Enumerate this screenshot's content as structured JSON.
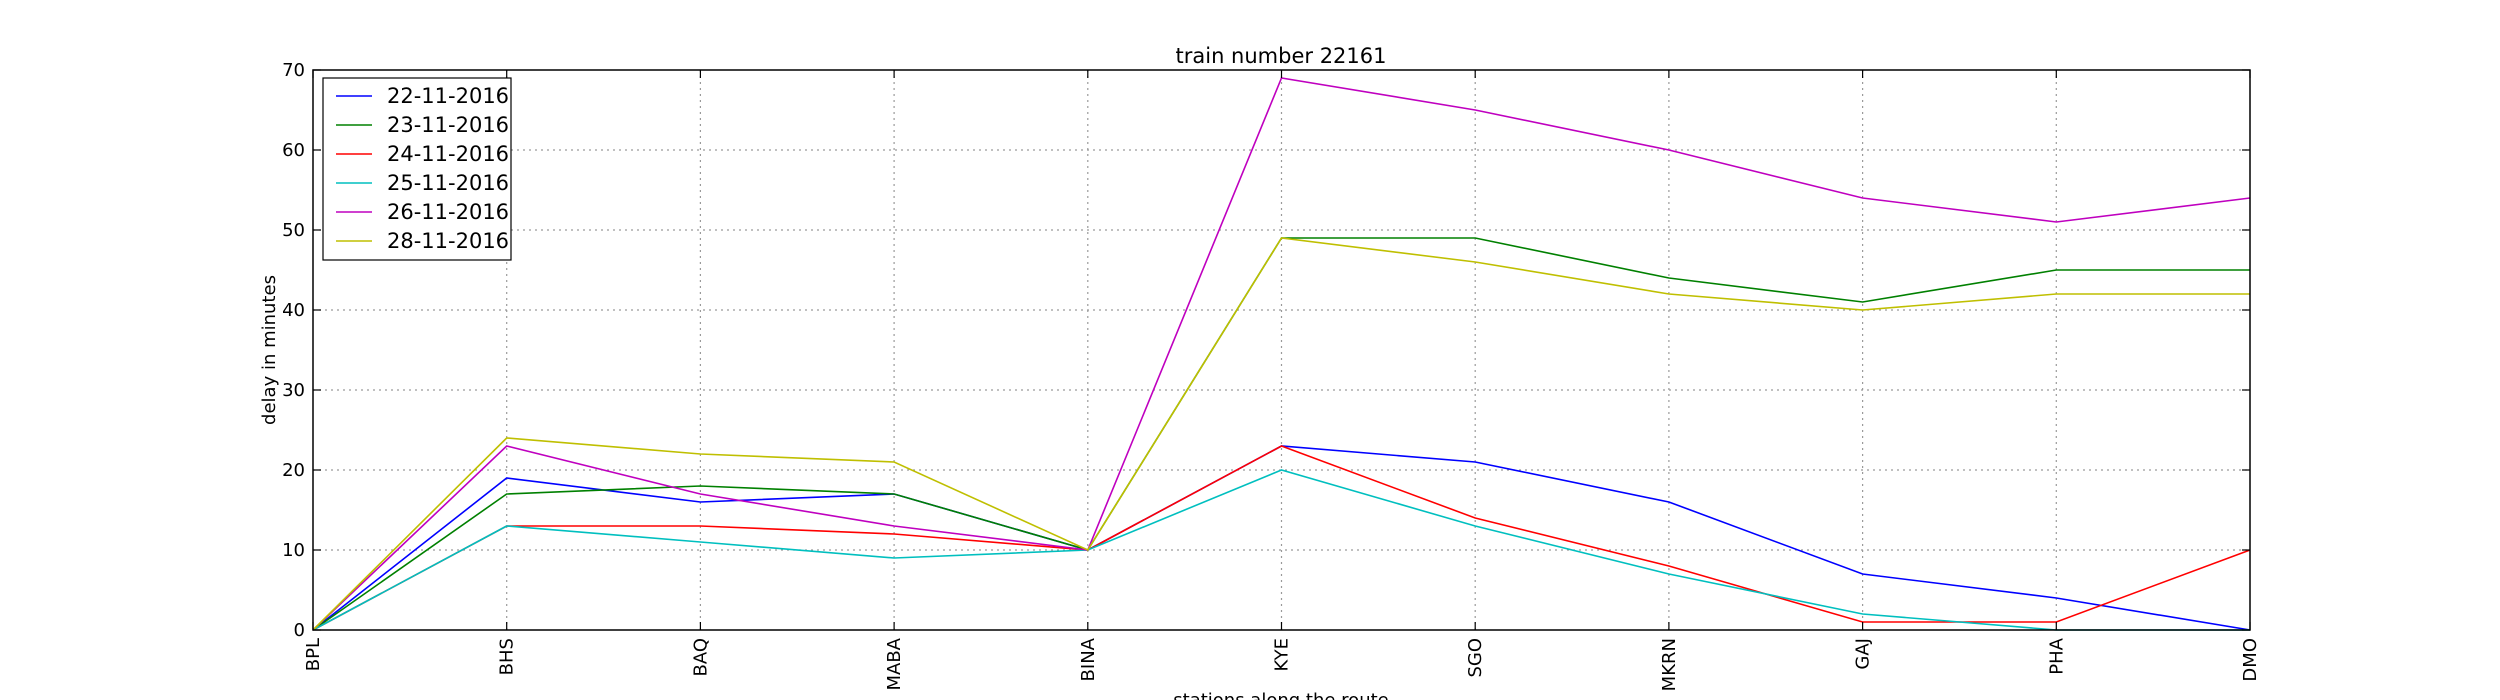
{
  "chart_data": {
    "type": "line",
    "title": "train number 22161",
    "xlabel": "stations along the route",
    "ylabel": "delay in minutes",
    "categories": [
      "BPL",
      "BHS",
      "BAQ",
      "MABA",
      "BINA",
      "KYE",
      "SGO",
      "MKRN",
      "GAJ",
      "PHA",
      "DMO"
    ],
    "ylim": [
      0,
      70
    ],
    "yticks": [
      0,
      10,
      20,
      30,
      40,
      50,
      60,
      70
    ],
    "grid": true,
    "legend_position": "top-left",
    "series": [
      {
        "name": "22-11-2016",
        "color": "#0000ff",
        "values": [
          0,
          19,
          16,
          17,
          10,
          23,
          21,
          16,
          7,
          4,
          0
        ]
      },
      {
        "name": "23-11-2016",
        "color": "#008000",
        "values": [
          0,
          17,
          18,
          17,
          10,
          49,
          49,
          44,
          41,
          45,
          45
        ]
      },
      {
        "name": "24-11-2016",
        "color": "#ff0000",
        "values": [
          0,
          13,
          13,
          12,
          10,
          23,
          14,
          8,
          1,
          1,
          10
        ]
      },
      {
        "name": "25-11-2016",
        "color": "#00bfbf",
        "values": [
          0,
          13,
          11,
          9,
          10,
          20,
          13,
          7,
          2,
          0,
          0
        ]
      },
      {
        "name": "26-11-2016",
        "color": "#bf00bf",
        "values": [
          0,
          23,
          17,
          13,
          10,
          69,
          65,
          60,
          54,
          51,
          54
        ]
      },
      {
        "name": "28-11-2016",
        "color": "#bfbf00",
        "values": [
          0,
          24,
          22,
          21,
          10,
          49,
          46,
          42,
          40,
          42,
          42
        ]
      }
    ]
  }
}
